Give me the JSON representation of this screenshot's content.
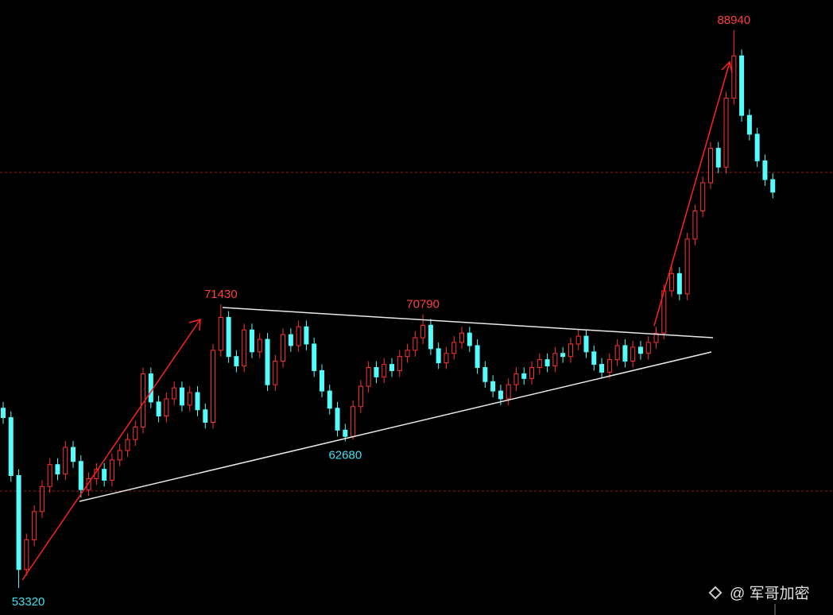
{
  "chart_data": {
    "type": "candlestick",
    "up_color": "#ff3232",
    "down_color": "#54fcfc",
    "open": [
      64800,
      64200,
      60500,
      54500,
      56400,
      58200,
      59800,
      61200,
      60600,
      62300,
      61400,
      59600,
      60300,
      60900,
      60200,
      61500,
      62100,
      62800,
      63600,
      67000,
      65200,
      64300,
      65400,
      66100,
      65000,
      65800,
      64700,
      63900,
      68500,
      70600,
      68100,
      67500,
      69800,
      68400,
      69200,
      66300,
      67800,
      69500,
      68800,
      70000,
      68900,
      67200,
      65900,
      64800,
      63400,
      63000,
      64900,
      66200,
      67400,
      66800,
      67600,
      67200,
      68100,
      68500,
      69300,
      70100,
      68600,
      67700,
      68300,
      69000,
      69600,
      68800,
      67400,
      66500,
      65900,
      65400,
      66300,
      67000,
      66700,
      67400,
      67900,
      67500,
      68300,
      68100,
      68900,
      69400,
      68400,
      67600,
      67100,
      67900,
      68800,
      67800,
      68700,
      68300,
      69000,
      69600,
      72300,
      73400,
      72100,
      75600,
      77400,
      79200,
      81400,
      80200,
      84600,
      87300,
      83500,
      82300,
      80600,
      79400
    ],
    "high": [
      65200,
      64600,
      60900,
      56800,
      58600,
      60200,
      61600,
      61600,
      62700,
      62700,
      61800,
      60700,
      61300,
      61300,
      61900,
      62500,
      63200,
      64000,
      67400,
      67400,
      65600,
      65800,
      66500,
      66500,
      66200,
      66200,
      65100,
      68900,
      71430,
      71000,
      68500,
      70200,
      70200,
      69600,
      69600,
      68200,
      69900,
      69900,
      70400,
      70400,
      69300,
      67600,
      66300,
      65200,
      63800,
      65300,
      66600,
      67800,
      67800,
      68000,
      68000,
      68500,
      68900,
      69700,
      70790,
      70500,
      69000,
      68700,
      69400,
      70000,
      70000,
      69200,
      67800,
      66900,
      66300,
      66700,
      67400,
      67400,
      67800,
      68300,
      68300,
      68700,
      68700,
      69300,
      69800,
      69800,
      68800,
      68000,
      68300,
      69200,
      69200,
      69100,
      69100,
      69400,
      70000,
      72700,
      73800,
      73800,
      76000,
      77800,
      79600,
      81800,
      81800,
      85000,
      88940,
      87700,
      83900,
      82700,
      81000,
      79800
    ],
    "low": [
      63800,
      60100,
      53320,
      54100,
      56000,
      57800,
      59400,
      60200,
      60200,
      61000,
      59100,
      59200,
      59900,
      59800,
      59800,
      61100,
      61700,
      62400,
      63200,
      64800,
      63900,
      63900,
      65000,
      64600,
      64600,
      64300,
      63500,
      63500,
      68100,
      67700,
      67100,
      67100,
      68000,
      68000,
      65900,
      65900,
      67400,
      68400,
      68400,
      68500,
      66800,
      65500,
      64400,
      63000,
      62680,
      62800,
      64500,
      65800,
      66400,
      66400,
      66800,
      66800,
      67700,
      68100,
      68900,
      68200,
      67300,
      67300,
      67900,
      68600,
      68400,
      67000,
      66100,
      65500,
      65000,
      65000,
      65900,
      66300,
      66300,
      67000,
      67100,
      67100,
      67700,
      67700,
      68500,
      68000,
      67200,
      66700,
      66700,
      67500,
      67400,
      67400,
      67900,
      67900,
      68600,
      69200,
      71900,
      71700,
      71700,
      75200,
      77000,
      78800,
      79800,
      79800,
      84200,
      83100,
      81900,
      80200,
      79000,
      78200
    ],
    "close": [
      64200,
      60500,
      54500,
      56400,
      58200,
      59800,
      61200,
      60600,
      62300,
      61400,
      59600,
      60300,
      60900,
      60200,
      61500,
      62100,
      62800,
      63600,
      67000,
      65200,
      64300,
      65400,
      66100,
      65000,
      65800,
      64700,
      63900,
      68500,
      70600,
      68100,
      67500,
      69800,
      68400,
      69200,
      66300,
      67800,
      69500,
      68800,
      70000,
      68900,
      67200,
      65900,
      64800,
      63400,
      63000,
      64900,
      66200,
      67400,
      66800,
      67600,
      67200,
      68100,
      68500,
      69300,
      70100,
      68600,
      67700,
      68300,
      69000,
      69600,
      68800,
      67400,
      66500,
      65900,
      65400,
      66300,
      67000,
      66700,
      67400,
      67900,
      67500,
      68300,
      68100,
      68900,
      69400,
      68400,
      67600,
      67100,
      67900,
      68800,
      67800,
      68700,
      68300,
      69000,
      69600,
      72300,
      73400,
      72100,
      75600,
      77400,
      79200,
      81400,
      80200,
      84600,
      87300,
      83500,
      82300,
      80600,
      79400,
      78600
    ]
  },
  "watermark": "@ 军哥加密"
}
